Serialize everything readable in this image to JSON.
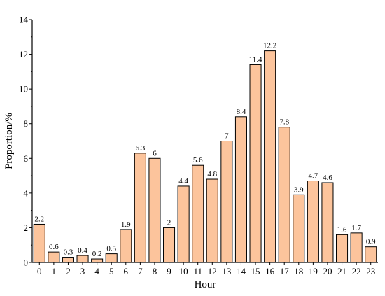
{
  "chart_data": {
    "type": "bar",
    "xlabel": "Hour",
    "ylabel": "Proportion/%",
    "ylim": [
      0,
      14
    ],
    "yticks": [
      0,
      2,
      4,
      6,
      8,
      10,
      12,
      14
    ],
    "categories": [
      "0",
      "1",
      "2",
      "3",
      "4",
      "5",
      "6",
      "7",
      "8",
      "9",
      "10",
      "11",
      "12",
      "13",
      "14",
      "15",
      "16",
      "17",
      "18",
      "19",
      "20",
      "21",
      "22",
      "23"
    ],
    "values": [
      2.2,
      0.6,
      0.3,
      0.4,
      0.2,
      0.5,
      1.9,
      6.3,
      6,
      2,
      4.4,
      5.6,
      4.8,
      7,
      8.4,
      11.4,
      12.2,
      7.8,
      3.9,
      4.7,
      4.6,
      1.6,
      1.7,
      0.9
    ],
    "data_labels": [
      "2.2",
      "0.6",
      "0.3",
      "0.4",
      "0.2",
      "0.5",
      "1.9",
      "6.3",
      "6",
      "2",
      "4.4",
      "5.6",
      "4.8",
      "7",
      "8.4",
      "11.4",
      "12.2",
      "7.8",
      "3.9",
      "4.7",
      "4.6",
      "1.6",
      "1.7",
      "0.9"
    ],
    "bar_color": "#fcc49c",
    "grid": false,
    "legend": "none"
  }
}
